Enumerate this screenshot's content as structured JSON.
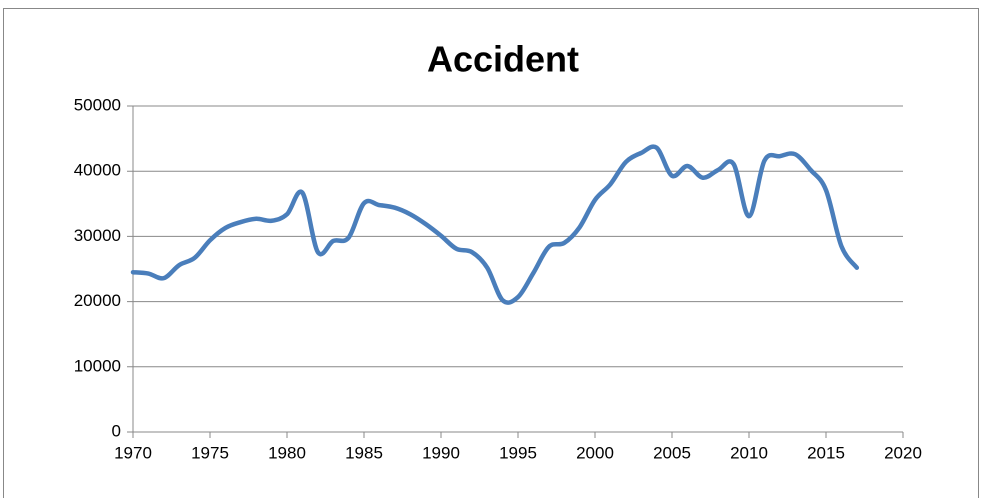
{
  "chart_data": {
    "type": "line",
    "title": "Accident",
    "x": [
      1970,
      1971,
      1972,
      1973,
      1974,
      1975,
      1976,
      1977,
      1978,
      1979,
      1980,
      1981,
      1982,
      1983,
      1984,
      1985,
      1986,
      1987,
      1988,
      1989,
      1990,
      1991,
      1992,
      1993,
      1994,
      1995,
      1996,
      1997,
      1998,
      1999,
      2000,
      2001,
      2002,
      2003,
      2004,
      2005,
      2006,
      2007,
      2008,
      2009,
      2010,
      2011,
      2012,
      2013,
      2014,
      2015,
      2016,
      2017
    ],
    "series": [
      {
        "name": "Accident",
        "color": "#4a7ebb",
        "values": [
          24500,
          24300,
          23600,
          25600,
          26700,
          29400,
          31300,
          32200,
          32700,
          32400,
          33400,
          36700,
          27600,
          29300,
          29800,
          35100,
          34800,
          34400,
          33400,
          31900,
          30100,
          28100,
          27600,
          25200,
          20200,
          20700,
          24400,
          28400,
          29000,
          31400,
          35600,
          38000,
          41400,
          42800,
          43600,
          39300,
          40800,
          39000,
          40200,
          41100,
          33100,
          41600,
          42300,
          42600,
          40200,
          37100,
          28500,
          25200
        ]
      }
    ],
    "xlim": [
      1970,
      2020
    ],
    "xticks": [
      1970,
      1975,
      1980,
      1985,
      1990,
      1995,
      2000,
      2005,
      2010,
      2015,
      2020
    ],
    "ylim": [
      0,
      50000
    ],
    "yticks": [
      0,
      10000,
      20000,
      30000,
      40000,
      50000
    ],
    "grid": true
  }
}
